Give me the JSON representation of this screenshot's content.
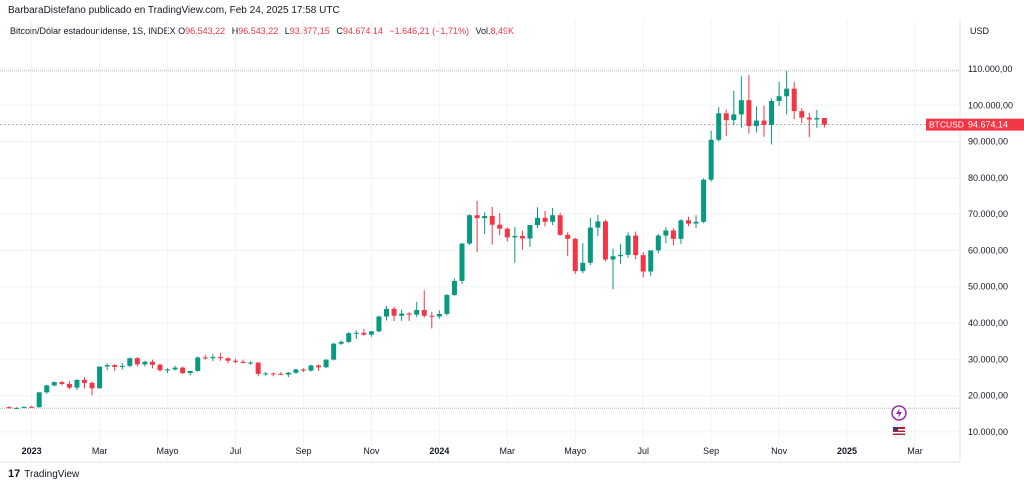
{
  "header": {
    "published": "BarbaraDistefano publicado en TradingView.com, Feb 24, 2025 17:58 UTC",
    "currency": "USD"
  },
  "legend": {
    "symbol": "Bitcoin/Dólar estadounidense, 1S, INDEX",
    "o_label": "O",
    "o_value": "96.543,22",
    "h_label": "H",
    "h_value": "96.543,22",
    "l_label": "L",
    "l_value": "93.877,15",
    "c_label": "C",
    "c_value": "94.674,14",
    "change": "−1.646,21 (−1,71%)",
    "vol_label": "Vol.",
    "vol_value": "8,49K"
  },
  "footer": {
    "brand": "TradingView",
    "logo_text": "17"
  },
  "colors": {
    "up": "#089981",
    "down": "#f23645",
    "grid": "#f0f3fa",
    "axis_text": "#131722"
  },
  "chart_data": {
    "type": "candlestick",
    "symbol": "BTCUSD",
    "ylim": [
      5000,
      118000
    ],
    "y_ticks": [
      10000,
      20000,
      30000,
      40000,
      50000,
      60000,
      70000,
      80000,
      90000,
      100000,
      110000
    ],
    "y_tick_labels": [
      "10.000,00",
      "20.000,00",
      "30.000,00",
      "40.000,00",
      "50.000,00",
      "60.000,00",
      "70.000,00",
      "80.000,00",
      "90.000,00",
      "100.000,00",
      "110.000,00"
    ],
    "x_ticks": [
      {
        "label": "2023",
        "bold": true,
        "index": 3
      },
      {
        "label": "Mar",
        "bold": false,
        "index": 12
      },
      {
        "label": "Mayo",
        "bold": false,
        "index": 21
      },
      {
        "label": "Jul",
        "bold": false,
        "index": 30
      },
      {
        "label": "Sep",
        "bold": false,
        "index": 39
      },
      {
        "label": "Nov",
        "bold": false,
        "index": 48
      },
      {
        "label": "2024",
        "bold": true,
        "index": 57
      },
      {
        "label": "Mar",
        "bold": false,
        "index": 66
      },
      {
        "label": "Mayo",
        "bold": false,
        "index": 75
      },
      {
        "label": "Jul",
        "bold": false,
        "index": 84
      },
      {
        "label": "Sep",
        "bold": false,
        "index": 93
      },
      {
        "label": "Nov",
        "bold": false,
        "index": 102
      },
      {
        "label": "2025",
        "bold": true,
        "index": 111
      },
      {
        "label": "Mar",
        "bold": false,
        "index": 120
      }
    ],
    "last_price": 94674.14,
    "last_price_label": "94.674,14",
    "reference_lines": [
      109500,
      16500
    ],
    "candles": [
      [
        16800,
        17100,
        16500,
        16500
      ],
      [
        16500,
        16800,
        16300,
        16600
      ],
      [
        16600,
        16900,
        16500,
        16900
      ],
      [
        16900,
        17200,
        16700,
        16800
      ],
      [
        16800,
        20900,
        16700,
        20900
      ],
      [
        20900,
        23000,
        20500,
        22800
      ],
      [
        22800,
        23900,
        22500,
        23700
      ],
      [
        23700,
        24000,
        22800,
        23200
      ],
      [
        23200,
        24000,
        21800,
        22200
      ],
      [
        22200,
        24500,
        21500,
        24300
      ],
      [
        24300,
        25100,
        22000,
        23500
      ],
      [
        23500,
        23900,
        20100,
        22000
      ],
      [
        22000,
        28000,
        22000,
        28000
      ],
      [
        28000,
        28900,
        27000,
        28400
      ],
      [
        28400,
        28700,
        26800,
        27900
      ],
      [
        27900,
        29000,
        27100,
        28200
      ],
      [
        28200,
        30500,
        27800,
        30300
      ],
      [
        30300,
        30600,
        28000,
        28600
      ],
      [
        28600,
        29600,
        28000,
        29300
      ],
      [
        29300,
        29900,
        27500,
        28500
      ],
      [
        28500,
        28800,
        26600,
        27000
      ],
      [
        27000,
        27500,
        26200,
        27200
      ],
      [
        27200,
        28200,
        26900,
        27700
      ],
      [
        27700,
        28000,
        25900,
        26200
      ],
      [
        26200,
        26800,
        25500,
        26800
      ],
      [
        26800,
        30800,
        26600,
        30500
      ],
      [
        30500,
        31200,
        29900,
        30300
      ],
      [
        30300,
        31400,
        29500,
        30600
      ],
      [
        30600,
        31800,
        29600,
        30300
      ],
      [
        30300,
        30500,
        28900,
        29600
      ],
      [
        29600,
        30100,
        28900,
        29300
      ],
      [
        29300,
        29900,
        28800,
        29000
      ],
      [
        29000,
        29500,
        28500,
        29100
      ],
      [
        29100,
        29200,
        25300,
        26000
      ],
      [
        26000,
        26500,
        25500,
        26100
      ],
      [
        26100,
        26300,
        25300,
        26000
      ],
      [
        26000,
        26500,
        25700,
        25800
      ],
      [
        25800,
        26500,
        25100,
        26300
      ],
      [
        26300,
        27400,
        26000,
        27200
      ],
      [
        27200,
        27500,
        26500,
        26900
      ],
      [
        26900,
        28500,
        26600,
        28300
      ],
      [
        28300,
        28600,
        26800,
        27800
      ],
      [
        27800,
        30000,
        27600,
        29900
      ],
      [
        29900,
        34500,
        29700,
        34300
      ],
      [
        34300,
        35200,
        34000,
        34800
      ],
      [
        34800,
        37500,
        34500,
        37200
      ],
      [
        37200,
        38000,
        35600,
        37300
      ],
      [
        37300,
        38400,
        36500,
        36800
      ],
      [
        36800,
        37800,
        36200,
        37700
      ],
      [
        37700,
        42000,
        37500,
        41800
      ],
      [
        41800,
        44700,
        40700,
        43900
      ],
      [
        43900,
        44500,
        40500,
        42000
      ],
      [
        42000,
        43700,
        40600,
        42600
      ],
      [
        42600,
        43000,
        40600,
        42300
      ],
      [
        42300,
        45800,
        41600,
        43600
      ],
      [
        43600,
        49000,
        41500,
        42000
      ],
      [
        42000,
        43000,
        38500,
        41800
      ],
      [
        41800,
        43500,
        41200,
        42500
      ],
      [
        42500,
        48000,
        42100,
        47700
      ],
      [
        47700,
        52300,
        47500,
        51600
      ],
      [
        51600,
        62000,
        50800,
        61900
      ],
      [
        61900,
        70000,
        61500,
        69700
      ],
      [
        69700,
        73700,
        59500,
        68900
      ],
      [
        68900,
        70500,
        64500,
        69500
      ],
      [
        69500,
        72000,
        61600,
        67100
      ],
      [
        67100,
        70300,
        64200,
        66000
      ],
      [
        66000,
        66300,
        62500,
        63600
      ],
      [
        63600,
        66500,
        56600,
        64000
      ],
      [
        64000,
        65500,
        60200,
        63300
      ],
      [
        63300,
        67000,
        61000,
        67000
      ],
      [
        67000,
        71900,
        66200,
        69000
      ],
      [
        69000,
        70900,
        66600,
        67900
      ],
      [
        67900,
        71700,
        67000,
        69700
      ],
      [
        69700,
        70400,
        64000,
        64300
      ],
      [
        64300,
        65000,
        58500,
        63200
      ],
      [
        63200,
        63500,
        53500,
        54300
      ],
      [
        54300,
        62000,
        53700,
        56600
      ],
      [
        56600,
        69000,
        56000,
        66300
      ],
      [
        66300,
        69800,
        64000,
        68000
      ],
      [
        68000,
        68500,
        57000,
        57500
      ],
      [
        57500,
        60500,
        49300,
        58400
      ],
      [
        58400,
        61800,
        56300,
        58800
      ],
      [
        58800,
        65000,
        58000,
        64100
      ],
      [
        64100,
        65200,
        57600,
        58700
      ],
      [
        58700,
        59500,
        52600,
        54200
      ],
      [
        54200,
        60000,
        53000,
        60000
      ],
      [
        60000,
        64500,
        59200,
        64100
      ],
      [
        64100,
        66400,
        62000,
        65500
      ],
      [
        65500,
        66100,
        61400,
        63200
      ],
      [
        63200,
        68600,
        61800,
        68300
      ],
      [
        68300,
        69300,
        66700,
        67400
      ],
      [
        67400,
        69700,
        66100,
        67900
      ],
      [
        67900,
        79900,
        67500,
        79500
      ],
      [
        79500,
        93000,
        79000,
        90500
      ],
      [
        90500,
        99500,
        90000,
        97800
      ],
      [
        97800,
        98800,
        91500,
        95900
      ],
      [
        95900,
        104000,
        94500,
        97500
      ],
      [
        97500,
        108000,
        93800,
        101400
      ],
      [
        101400,
        108300,
        92200,
        94300
      ],
      [
        94300,
        99700,
        92500,
        95800
      ],
      [
        95800,
        99900,
        91300,
        94600
      ],
      [
        94600,
        101900,
        89200,
        101200
      ],
      [
        101200,
        106500,
        99800,
        102500
      ],
      [
        102500,
        109500,
        97500,
        104600
      ],
      [
        104600,
        106400,
        96200,
        98400
      ],
      [
        98400,
        99200,
        95100,
        96600
      ],
      [
        96600,
        97900,
        91200,
        96100
      ],
      [
        96100,
        98700,
        93800,
        96500
      ],
      [
        96500,
        96543,
        93877,
        94674
      ]
    ]
  }
}
